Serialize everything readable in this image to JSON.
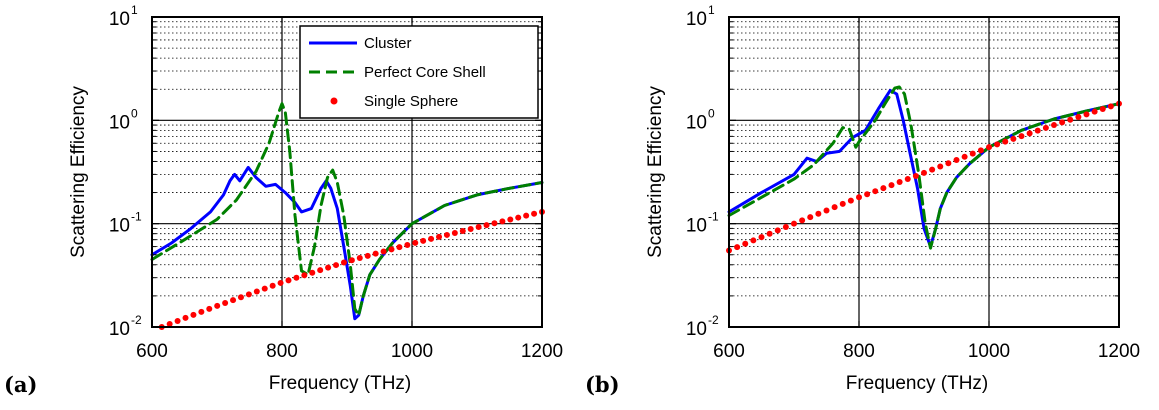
{
  "chart_data": [
    {
      "type": "line",
      "panel_label": "(a)",
      "xlabel": "Frequency (THz)",
      "ylabel": "Scattering Efficiency",
      "xlim": [
        600,
        1200
      ],
      "ylim": [
        0.01,
        10
      ],
      "yscale": "log",
      "x_ticks": [
        "600",
        "800",
        "1000",
        "1200"
      ],
      "y_ticks": [
        {
          "base": "10",
          "exp": "-2"
        },
        {
          "base": "10",
          "exp": "-1"
        },
        {
          "base": "10",
          "exp": "0"
        },
        {
          "base": "10",
          "exp": "1"
        }
      ],
      "grid": true,
      "legend": "top-right",
      "series": [
        {
          "name": "Cluster",
          "color": "#0000ff",
          "style": "solid",
          "x": [
            600,
            630,
            660,
            690,
            710,
            720,
            727,
            735,
            748,
            760,
            775,
            790,
            805,
            820,
            830,
            845,
            860,
            868,
            875,
            885,
            895,
            905,
            912,
            918,
            925,
            935,
            950,
            970,
            1000,
            1050,
            1100,
            1150,
            1200
          ],
          "y": [
            0.05,
            0.065,
            0.09,
            0.13,
            0.19,
            0.26,
            0.3,
            0.26,
            0.35,
            0.28,
            0.23,
            0.24,
            0.2,
            0.16,
            0.13,
            0.14,
            0.22,
            0.26,
            0.22,
            0.14,
            0.06,
            0.025,
            0.012,
            0.013,
            0.02,
            0.032,
            0.045,
            0.065,
            0.1,
            0.15,
            0.19,
            0.22,
            0.25
          ]
        },
        {
          "name": "Perfect Core Shell",
          "color": "#008000",
          "style": "dashed",
          "x": [
            600,
            650,
            700,
            730,
            760,
            780,
            795,
            800,
            805,
            812,
            820,
            830,
            840,
            850,
            860,
            870,
            878,
            885,
            895,
            905,
            912,
            918,
            925,
            935,
            950,
            970,
            1000,
            1050,
            1100,
            1150,
            1200
          ],
          "y": [
            0.045,
            0.07,
            0.11,
            0.17,
            0.32,
            0.6,
            1.2,
            1.45,
            1.2,
            0.5,
            0.12,
            0.035,
            0.032,
            0.06,
            0.15,
            0.28,
            0.33,
            0.25,
            0.12,
            0.04,
            0.015,
            0.013,
            0.02,
            0.032,
            0.045,
            0.065,
            0.1,
            0.15,
            0.19,
            0.22,
            0.25
          ]
        },
        {
          "name": "Single Sphere",
          "color": "#ff0000",
          "style": "dotted",
          "x": [
            615,
            700,
            800,
            900,
            1000,
            1100,
            1200
          ],
          "y": [
            0.01,
            0.016,
            0.027,
            0.043,
            0.064,
            0.092,
            0.13
          ]
        }
      ]
    },
    {
      "type": "line",
      "panel_label": "(b)",
      "xlabel": "Frequency (THz)",
      "ylabel": "Scattering Efficiency",
      "xlim": [
        600,
        1200
      ],
      "ylim": [
        0.01,
        10
      ],
      "yscale": "log",
      "x_ticks": [
        "600",
        "800",
        "1000",
        "1200"
      ],
      "y_ticks": [
        {
          "base": "10",
          "exp": "-2"
        },
        {
          "base": "10",
          "exp": "-1"
        },
        {
          "base": "10",
          "exp": "0"
        },
        {
          "base": "10",
          "exp": "1"
        }
      ],
      "grid": true,
      "series": [
        {
          "name": "Cluster",
          "color": "#0000ff",
          "style": "solid",
          "x": [
            600,
            650,
            700,
            720,
            735,
            750,
            770,
            790,
            810,
            830,
            848,
            858,
            868,
            878,
            890,
            900,
            910,
            918,
            925,
            935,
            950,
            970,
            1000,
            1050,
            1100,
            1150,
            1200
          ],
          "y": [
            0.13,
            0.2,
            0.3,
            0.43,
            0.4,
            0.48,
            0.5,
            0.68,
            0.8,
            1.3,
            1.95,
            1.8,
            1.0,
            0.5,
            0.22,
            0.09,
            0.06,
            0.09,
            0.14,
            0.2,
            0.28,
            0.38,
            0.55,
            0.8,
            1.03,
            1.23,
            1.45
          ]
        },
        {
          "name": "Perfect Core Shell",
          "color": "#008000",
          "style": "dashed",
          "x": [
            600,
            650,
            700,
            730,
            760,
            775,
            785,
            795,
            800,
            810,
            825,
            840,
            855,
            862,
            870,
            880,
            892,
            902,
            910,
            918,
            925,
            935,
            950,
            970,
            1000,
            1050,
            1100,
            1150,
            1200
          ],
          "y": [
            0.12,
            0.18,
            0.27,
            0.37,
            0.6,
            0.85,
            0.82,
            0.55,
            0.62,
            0.75,
            1.0,
            1.45,
            2.05,
            2.1,
            1.8,
            0.9,
            0.3,
            0.1,
            0.058,
            0.09,
            0.14,
            0.2,
            0.28,
            0.38,
            0.55,
            0.8,
            1.03,
            1.23,
            1.45
          ]
        },
        {
          "name": "Single Sphere",
          "color": "#ff0000",
          "style": "dotted",
          "x": [
            600,
            700,
            800,
            900,
            1000,
            1100,
            1200
          ],
          "y": [
            0.055,
            0.1,
            0.18,
            0.31,
            0.55,
            0.9,
            1.45
          ]
        }
      ]
    }
  ]
}
